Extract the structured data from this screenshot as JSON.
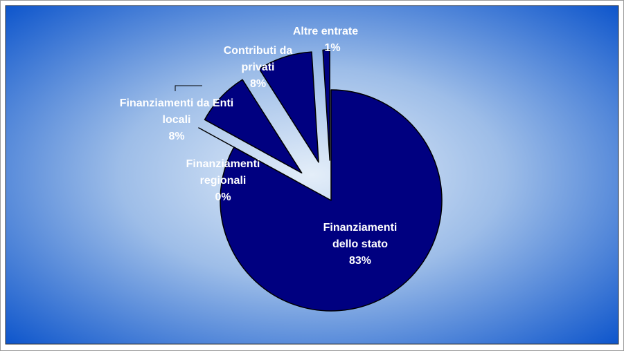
{
  "chart_data": {
    "type": "pie",
    "categories": [
      "Finanziamenti dello stato",
      "Finanziamenti regionali",
      "Finanziamenti da Enti locali",
      "Contributi da privati",
      "Altre entrate"
    ],
    "values": [
      83,
      0,
      8,
      8,
      1
    ],
    "value_labels": [
      "83%",
      "0%",
      "8%",
      "8%",
      "1%"
    ],
    "color": "#000080"
  }
}
